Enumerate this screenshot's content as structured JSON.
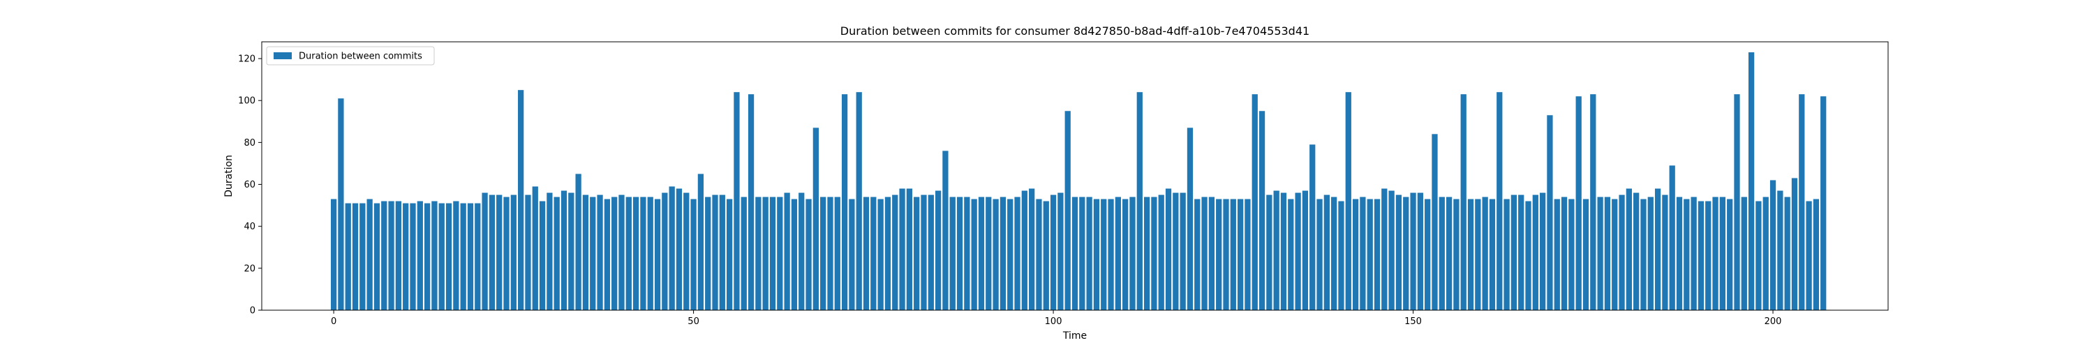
{
  "chart_data": {
    "type": "bar",
    "title": "Duration between commits for consumer 8d427850-b8ad-4dff-a10b-7e4704553d41",
    "xlabel": "Time",
    "ylabel": "Duration",
    "xlim": [
      -10,
      216
    ],
    "ylim": [
      0,
      128
    ],
    "xticks": [
      0,
      50,
      100,
      150,
      200
    ],
    "yticks": [
      0,
      20,
      40,
      60,
      80,
      100,
      120
    ],
    "grid": false,
    "legend": {
      "position": "top-left",
      "entries": [
        "Duration between commits"
      ]
    },
    "series": [
      {
        "name": "Duration between commits",
        "color": "#1f77b4",
        "x_start": 0,
        "values": [
          53,
          101,
          51,
          51,
          51,
          53,
          51,
          52,
          52,
          52,
          51,
          51,
          52,
          51,
          52,
          51,
          51,
          52,
          51,
          51,
          51,
          56,
          55,
          55,
          54,
          55,
          105,
          55,
          59,
          52,
          56,
          54,
          57,
          56,
          65,
          55,
          54,
          55,
          53,
          54,
          55,
          54,
          54,
          54,
          54,
          53,
          56,
          59,
          58,
          56,
          53,
          65,
          54,
          55,
          55,
          53,
          104,
          54,
          103,
          54,
          54,
          54,
          54,
          56,
          53,
          56,
          53,
          87,
          54,
          54,
          54,
          103,
          53,
          104,
          54,
          54,
          53,
          54,
          55,
          58,
          58,
          54,
          55,
          55,
          57,
          76,
          54,
          54,
          54,
          53,
          54,
          54,
          53,
          54,
          53,
          54,
          57,
          58,
          53,
          52,
          55,
          56,
          95,
          54,
          54,
          54,
          53,
          53,
          53,
          54,
          53,
          54,
          104,
          54,
          54,
          55,
          58,
          56,
          56,
          87,
          53,
          54,
          54,
          53,
          53,
          53,
          53,
          53,
          103,
          95,
          55,
          57,
          56,
          53,
          56,
          57,
          79,
          53,
          55,
          54,
          52,
          104,
          53,
          54,
          53,
          53,
          58,
          57,
          55,
          54,
          56,
          56,
          53,
          84,
          54,
          54,
          53,
          103,
          53,
          53,
          54,
          53,
          104,
          53,
          55,
          55,
          52,
          55,
          56,
          93,
          53,
          54,
          53,
          102,
          53,
          103,
          54,
          54,
          53,
          55,
          58,
          56,
          53,
          54,
          58,
          55,
          69,
          54,
          53,
          54,
          52,
          52,
          54,
          54,
          53,
          103,
          54,
          123,
          52,
          54,
          62,
          57,
          54,
          63,
          103,
          52,
          53,
          102
        ]
      }
    ]
  }
}
